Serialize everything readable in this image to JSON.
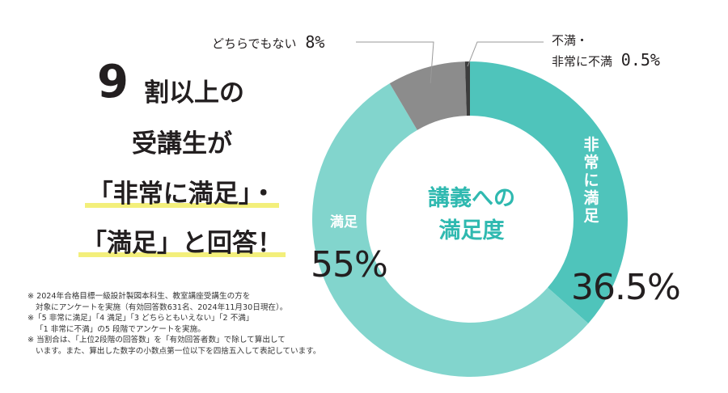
{
  "headline": {
    "number": "9",
    "line1": "割以上の",
    "line2": "受講生が",
    "line3": "「非常に満足」・",
    "line4": "「満足」と回答！"
  },
  "notes": [
    "※ 2024年合格目標一級設計製図本科生、教室講座受講生の方を",
    "対象にアンケートを実施（有効回答数631名、2024年11月30日現在）。",
    "※「5 非常に満足」「4 満足」「3 どちらともいえない」「2 不満」",
    "「1 非常に不満」の5 段階でアンケートを実施。",
    "※ 当割合は、「上位2段階の回答数」を「有効回答者数」で除して算出して",
    "います。また、算出した数字の小数点第一位以下を四捨五入して表記しています。"
  ],
  "chart_data": {
    "type": "pie",
    "title": "講義への満足度",
    "title_line1": "講義への",
    "title_line2": "満足度",
    "slices": [
      {
        "label": "非常に満足",
        "value": 36.5,
        "value_label": "36.5%",
        "color": "#4fc4bb"
      },
      {
        "label": "満足",
        "value": 55,
        "value_label": "55%",
        "color": "#82d5cd"
      },
      {
        "label": "どちらでもない",
        "value": 8,
        "value_label": "8%",
        "color": "#8c8c8c"
      },
      {
        "label": "不満・非常に不満",
        "value": 0.5,
        "value_label": "0.5%",
        "color": "#3d3d3d"
      }
    ],
    "labels": {
      "neutral": "どちらでもない",
      "neutral_pct": "8%",
      "dissatisfied_line1": "不満・",
      "dissatisfied_line2": "非常に不満",
      "dissatisfied_pct": "0.5%",
      "satisfied": "満足",
      "satisfied_pct": "55%",
      "very_satisfied_chars": [
        "非",
        "常",
        "に",
        "満",
        "足"
      ],
      "very_satisfied_pct": "36.5%"
    },
    "leader_color": "#999999"
  }
}
